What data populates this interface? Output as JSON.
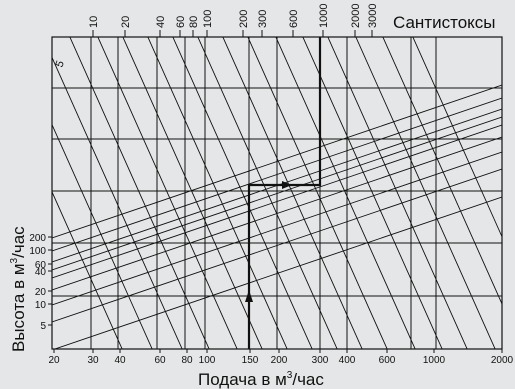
{
  "title_units": "Сантистоксы",
  "xlabel": "Подача в м",
  "xlabel_sup": "3",
  "xlabel_suffix": "/час",
  "ylabel": "Высота в м",
  "ylabel_sup": "3",
  "ylabel_suffix": "/час",
  "viscosity_labels": [
    "10",
    "20",
    "40",
    "60",
    "80",
    "100",
    "200",
    "300",
    "600",
    "1000",
    "2000",
    "3000"
  ],
  "viscosity_curve_label": "5",
  "x_ticks": [
    "20",
    "30",
    "40",
    "60",
    "80",
    "100",
    "150",
    "200",
    "300",
    "400",
    "600",
    "1000",
    "2000"
  ],
  "y_ticks": [
    "200",
    "100",
    "60",
    "40",
    "20",
    "10",
    "5"
  ],
  "example_path": {
    "flow": "150",
    "viscosity": "1000"
  },
  "colors": {
    "background": "#e5e6e7",
    "lines": "#111111"
  }
}
